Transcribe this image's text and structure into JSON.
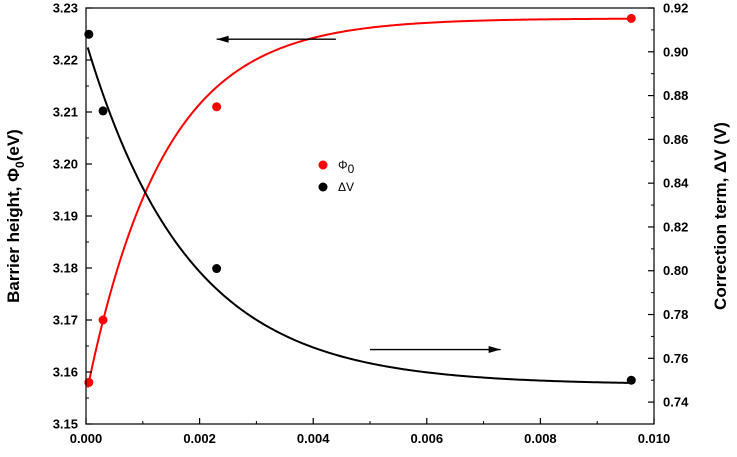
{
  "chart_data": {
    "type": "scatter",
    "x_axis": {
      "label": "",
      "lim": [
        0.0,
        0.01
      ],
      "ticks": [
        0.0,
        0.002,
        0.004,
        0.006,
        0.008,
        0.01
      ],
      "tick_labels": [
        "0.000",
        "0.002",
        "0.004",
        "0.006",
        "0.008",
        "0.010"
      ]
    },
    "y_left": {
      "label_main": "Barrier height, Φ",
      "label_sub": "0",
      "label_unit": "(eV)",
      "lim": [
        3.15,
        3.23
      ],
      "ticks": [
        3.15,
        3.16,
        3.17,
        3.18,
        3.19,
        3.2,
        3.21,
        3.22,
        3.23
      ],
      "tick_labels": [
        "3.15",
        "3.16",
        "3.17",
        "3.18",
        "3.19",
        "3.20",
        "3.21",
        "3.22",
        "3.23"
      ]
    },
    "y_right": {
      "label": "Correction term, ΔV (V)",
      "lim": [
        0.73,
        0.92
      ],
      "ticks": [
        0.74,
        0.76,
        0.78,
        0.8,
        0.82,
        0.84,
        0.86,
        0.88,
        0.9,
        0.92
      ],
      "tick_labels": [
        "0.74",
        "0.76",
        "0.78",
        "0.80",
        "0.82",
        "0.84",
        "0.86",
        "0.88",
        "0.90",
        "0.92"
      ]
    },
    "series": [
      {
        "name": "Φ0",
        "axis": "left",
        "color": "#ff0000",
        "points": [
          [
            5e-05,
            3.158
          ],
          [
            0.0003,
            3.17
          ],
          [
            0.0023,
            3.211
          ],
          [
            0.0096,
            3.228
          ]
        ],
        "fit": {
          "type": "exp-saturation",
          "y_inf": 3.228,
          "y_start": 3.157,
          "x_start": 3e-05,
          "tau": 0.00135
        }
      },
      {
        "name": "ΔV",
        "axis": "right",
        "color": "#000000",
        "points": [
          [
            5e-05,
            0.908
          ],
          [
            0.0003,
            0.873
          ],
          [
            0.0023,
            0.801
          ],
          [
            0.0096,
            0.75
          ]
        ],
        "fit": {
          "type": "exp-decay",
          "y_inf": 0.748,
          "y_start": 0.902,
          "x_start": 3e-05,
          "tau": 0.0018
        }
      }
    ],
    "legend": {
      "placement": "center",
      "entries": [
        {
          "sym": "Φ",
          "sub": "0",
          "color": "#ff0000"
        },
        {
          "sym": "ΔV",
          "sub": "",
          "color": "#000000"
        }
      ]
    },
    "annotations": [
      {
        "type": "arrow",
        "direction": "left",
        "points_to": "left axis",
        "from": [
          0.0044,
          3.224
        ],
        "to": [
          0.0023,
          3.224
        ]
      },
      {
        "type": "arrow",
        "direction": "right",
        "points_to": "right axis",
        "from": [
          0.005,
          0.764
        ],
        "to": [
          0.0073,
          0.764
        ]
      }
    ],
    "grid": false
  }
}
